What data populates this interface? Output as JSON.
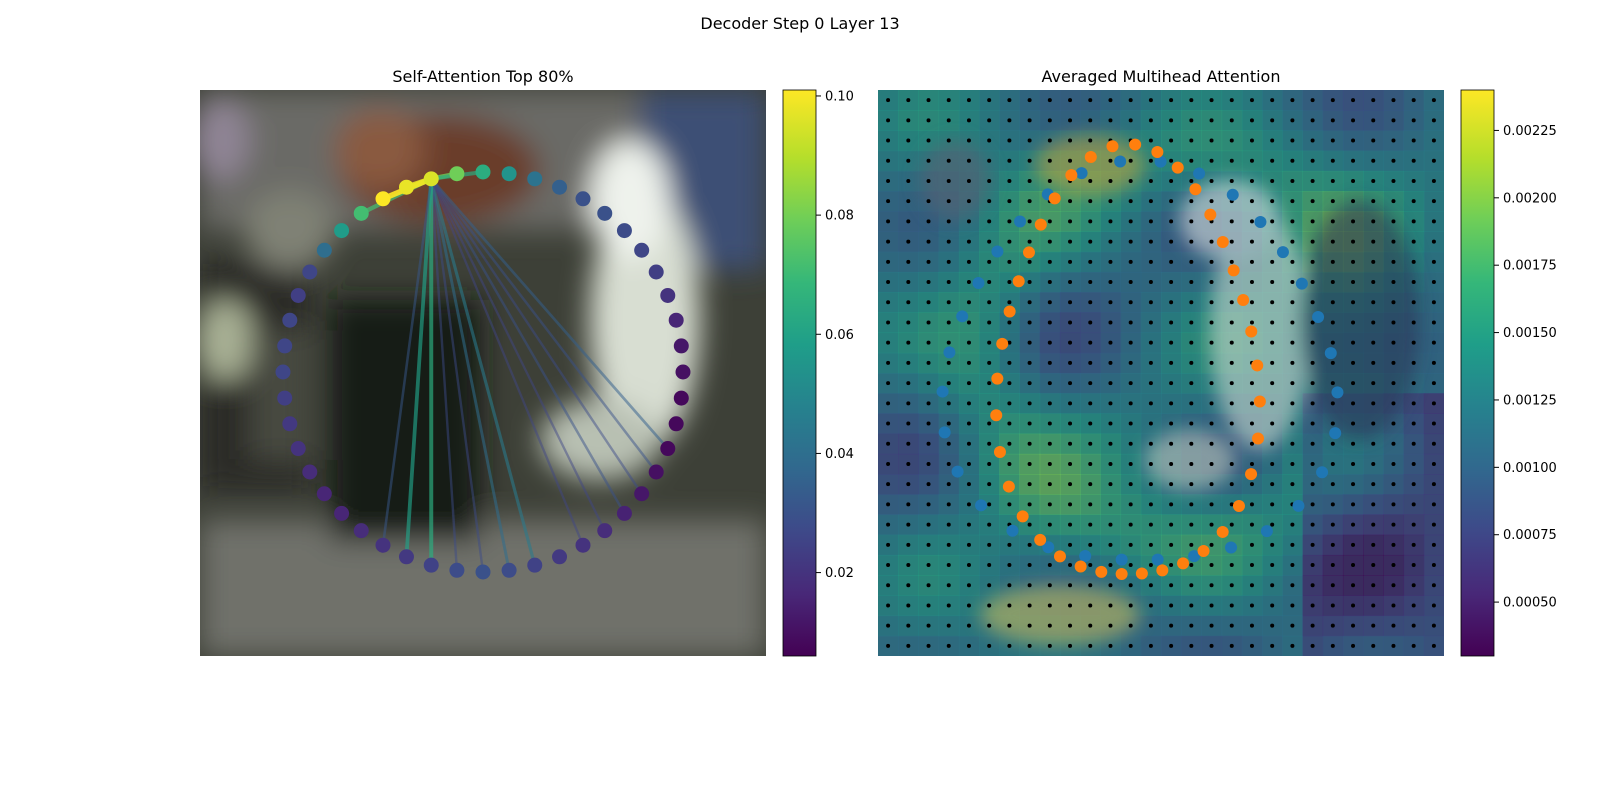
{
  "figure": {
    "suptitle": "Decoder Step 0 Layer 13"
  },
  "chart_data": [
    {
      "type": "scatter",
      "title": "Self-Attention Top 80%",
      "description_kind": "node-attention-graph",
      "node_count": 48,
      "node_values": [
        0.096,
        0.08,
        0.065,
        0.055,
        0.042,
        0.035,
        0.03,
        0.03,
        0.028,
        0.026,
        0.024,
        0.02,
        0.016,
        0.012,
        0.01,
        0.008,
        0.008,
        0.008,
        0.01,
        0.012,
        0.015,
        0.018,
        0.02,
        0.022,
        0.025,
        0.028,
        0.03,
        0.028,
        0.025,
        0.022,
        0.02,
        0.018,
        0.016,
        0.016,
        0.018,
        0.02,
        0.022,
        0.024,
        0.026,
        0.026,
        0.026,
        0.024,
        0.026,
        0.04,
        0.058,
        0.072,
        0.102,
        0.098
      ],
      "source_node": 0,
      "edges_from_source": [
        {
          "to": 1,
          "weight": 0.08
        },
        {
          "to": 2,
          "weight": 0.065
        },
        {
          "to": 45,
          "weight": 0.072
        },
        {
          "to": 46,
          "weight": 0.102
        },
        {
          "to": 47,
          "weight": 0.098
        },
        {
          "to": 17,
          "weight": 0.035
        },
        {
          "to": 18,
          "weight": 0.03
        },
        {
          "to": 19,
          "weight": 0.028
        },
        {
          "to": 20,
          "weight": 0.03
        },
        {
          "to": 24,
          "weight": 0.045
        },
        {
          "to": 25,
          "weight": 0.04
        },
        {
          "to": 26,
          "weight": 0.028
        },
        {
          "to": 27,
          "weight": 0.028
        },
        {
          "to": 28,
          "weight": 0.065
        },
        {
          "to": 29,
          "weight": 0.06
        },
        {
          "to": 30,
          "weight": 0.032
        },
        {
          "to": 21,
          "weight": 0.026
        },
        {
          "to": 22,
          "weight": 0.026
        }
      ],
      "colorbar": {
        "colormap": "viridis",
        "range": [
          0.006,
          0.101
        ],
        "ticks": [
          "0.02",
          "0.04",
          "0.06",
          "0.08",
          "0.10"
        ],
        "tick_values": [
          0.02,
          0.04,
          0.06,
          0.08,
          0.1
        ]
      }
    },
    {
      "type": "heatmap",
      "title": "Averaged Multihead Attention",
      "grid": [
        28,
        28
      ],
      "overlay_points": [
        {
          "name": "blue",
          "color": "#1f77b4",
          "count": 48
        },
        {
          "name": "orange",
          "color": "#ff7f0e",
          "count": 48
        }
      ],
      "colorbar": {
        "colormap": "viridis",
        "range": [
          0.0003,
          0.0024
        ],
        "ticks": [
          "0.00050",
          "0.00075",
          "0.00100",
          "0.00125",
          "0.00150",
          "0.00175",
          "0.00200",
          "0.00225"
        ],
        "tick_values": [
          0.0005,
          0.00075,
          0.001,
          0.00125,
          0.0015,
          0.00175,
          0.002,
          0.00225
        ]
      }
    }
  ],
  "colors": {
    "viridis": [
      "#440154",
      "#482878",
      "#3e4989",
      "#31688e",
      "#26828e",
      "#1f9e89",
      "#35b779",
      "#6ece58",
      "#b5de2b",
      "#fde725"
    ],
    "blue_points": "#1f77b4",
    "orange_points": "#ff7f0e"
  }
}
